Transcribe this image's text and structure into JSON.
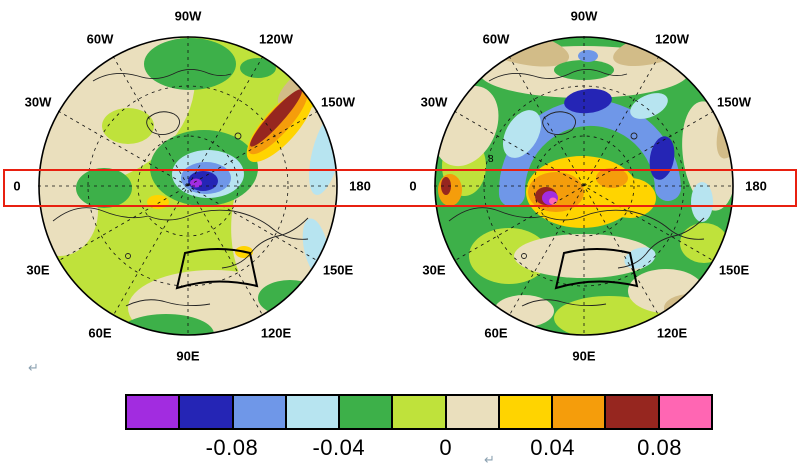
{
  "maps": [
    {
      "id": "left",
      "lon_labels": [
        "90W",
        "120W",
        "150W",
        "180",
        "150E",
        "120E",
        "90E",
        "60E",
        "30E",
        "0",
        "30W",
        "60W"
      ],
      "inline_label": ""
    },
    {
      "id": "right",
      "lon_labels": [
        "90W",
        "120W",
        "150W",
        "180",
        "150E",
        "120E",
        "90E",
        "60E",
        "30E",
        "0",
        "30W",
        "60W"
      ],
      "inline_label": "8"
    }
  ],
  "annotations": {
    "highlight_rect_color": "#e82010",
    "roi_box_color": "#000000",
    "return_mark_glyph": "↵"
  },
  "colorbar": {
    "colors": [
      "#a22ce0",
      "#2525b5",
      "#6f97e8",
      "#b7e4f0",
      "#3db049",
      "#bfe23b",
      "#eadfbd",
      "#ffd400",
      "#f59d0b",
      "#96261f",
      "#ff66b3"
    ],
    "tick_labels": [
      "-0.08",
      "-0.04",
      "0",
      "0.04",
      "0.08"
    ],
    "tick_positions_pct": [
      18.182,
      36.364,
      54.545,
      72.727,
      90.909
    ]
  },
  "chart_data": {
    "type": "heatmap",
    "subtype": "filled-contour polar-stereographic map pair",
    "projection": "north-polar-stereographic",
    "contour_levels": [
      -0.1,
      -0.08,
      -0.06,
      -0.04,
      -0.02,
      0,
      0.02,
      0.04,
      0.06,
      0.08
    ],
    "palette": [
      "#a22ce0",
      "#2525b5",
      "#6f97e8",
      "#b7e4f0",
      "#3db049",
      "#bfe23b",
      "#eadfbd",
      "#ffd400",
      "#f59d0b",
      "#96261f",
      "#ff66b3"
    ],
    "colorbar_tick_labels": [
      "-0.08",
      "-0.04",
      "0",
      "0.04",
      "0.08"
    ],
    "longitude_labels": [
      "0",
      "30W",
      "60W",
      "90W",
      "120W",
      "150W",
      "180",
      "150E",
      "120E",
      "90E",
      "60E",
      "30E"
    ],
    "graticule": "dashed latitude circles (30N, 60N) and meridians every 30 degrees, solid equator boundary circle",
    "panels": [
      {
        "position": "left",
        "summary": "Weak field: mostly -0.02 to +0.02 (yellow-green and beige). Negative core reaching below -0.10 (light blue > blue > dark blue > purple) centered just off the pole; strong positive diagonal streak 0.04 to >0.06 (yellow/orange/dark-red) near 60N in the 150W sector; pale-blue negative patches (-0.06 to -0.04) along the 150W-180 and 150E edges; scattered green (-0.04 to -0.02) patches north, west and south; beige (0 to 0.02) lobes over the upper-left and right sectors; small yellow spots (0.02-0.04) near the pole and 120E."
      },
      {
        "position": "right",
        "summary": "Strong annular pattern: positive core over the pole 0.02 to >0.08 (yellow ring, orange cores, small dark-red/purple/pink extreme toward the 0-meridian side); surrounding negative arc -0.04 to -0.10 (light blue to dark blue) from 60W over 90W/120W to 180; beige/tan positive ring (0 to 0.04) at mid-latitudes with khaki maxima near the outer edge; green negative ring (-0.04 to -0.02) near the equatorward boundary, strongest at bottom and left; small orange/dark-red positive spot at the 0-longitude edge."
      }
    ],
    "annotations": [
      "red rectangle spanning the full width of both panels at the 0/180 longitude-label (equator) row",
      "black quadrilateral region-of-interest box south of the pole (90E sector) in each panel",
      "small contour label '8' inside the right panel near the 0-meridian side"
    ]
  }
}
